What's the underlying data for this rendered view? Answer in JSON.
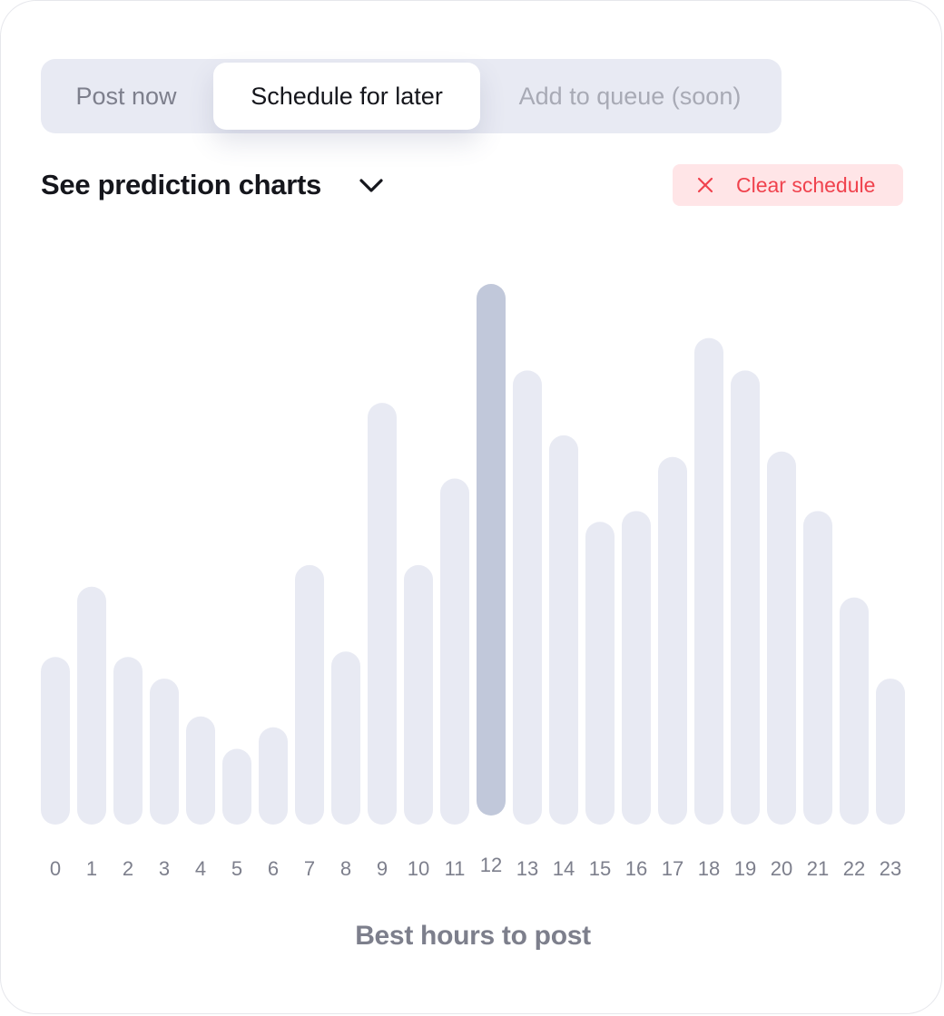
{
  "tabs": [
    {
      "label": "Post now",
      "state": "inactive"
    },
    {
      "label": "Schedule for later",
      "state": "active"
    },
    {
      "label": "Add to queue (soon)",
      "state": "disabled"
    }
  ],
  "prediction": {
    "label": "See prediction charts",
    "icon": "chevron-down-icon"
  },
  "clear": {
    "label": "Clear schedule",
    "icon": "close-icon",
    "color": "#f0424d",
    "background": "#ffe5e7"
  },
  "colors": {
    "bar": "#e8eaf3",
    "bar_highlight": "#c1c8da",
    "tick": "#7d7f8c"
  },
  "chart_data": {
    "type": "bar",
    "title": "",
    "xlabel": "Best hours to post",
    "ylabel": "",
    "categories": [
      "0",
      "1",
      "2",
      "3",
      "4",
      "5",
      "6",
      "7",
      "8",
      "9",
      "10",
      "11",
      "12",
      "13",
      "14",
      "15",
      "16",
      "17",
      "18",
      "19",
      "20",
      "21",
      "22",
      "23"
    ],
    "values": [
      31,
      44,
      31,
      27,
      20,
      14,
      18,
      48,
      32,
      78,
      48,
      64,
      100,
      84,
      72,
      56,
      58,
      68,
      90,
      84,
      69,
      58,
      42,
      27
    ],
    "highlight_index": 12,
    "ylim": [
      0,
      100
    ],
    "grid": false,
    "legend": "none"
  }
}
